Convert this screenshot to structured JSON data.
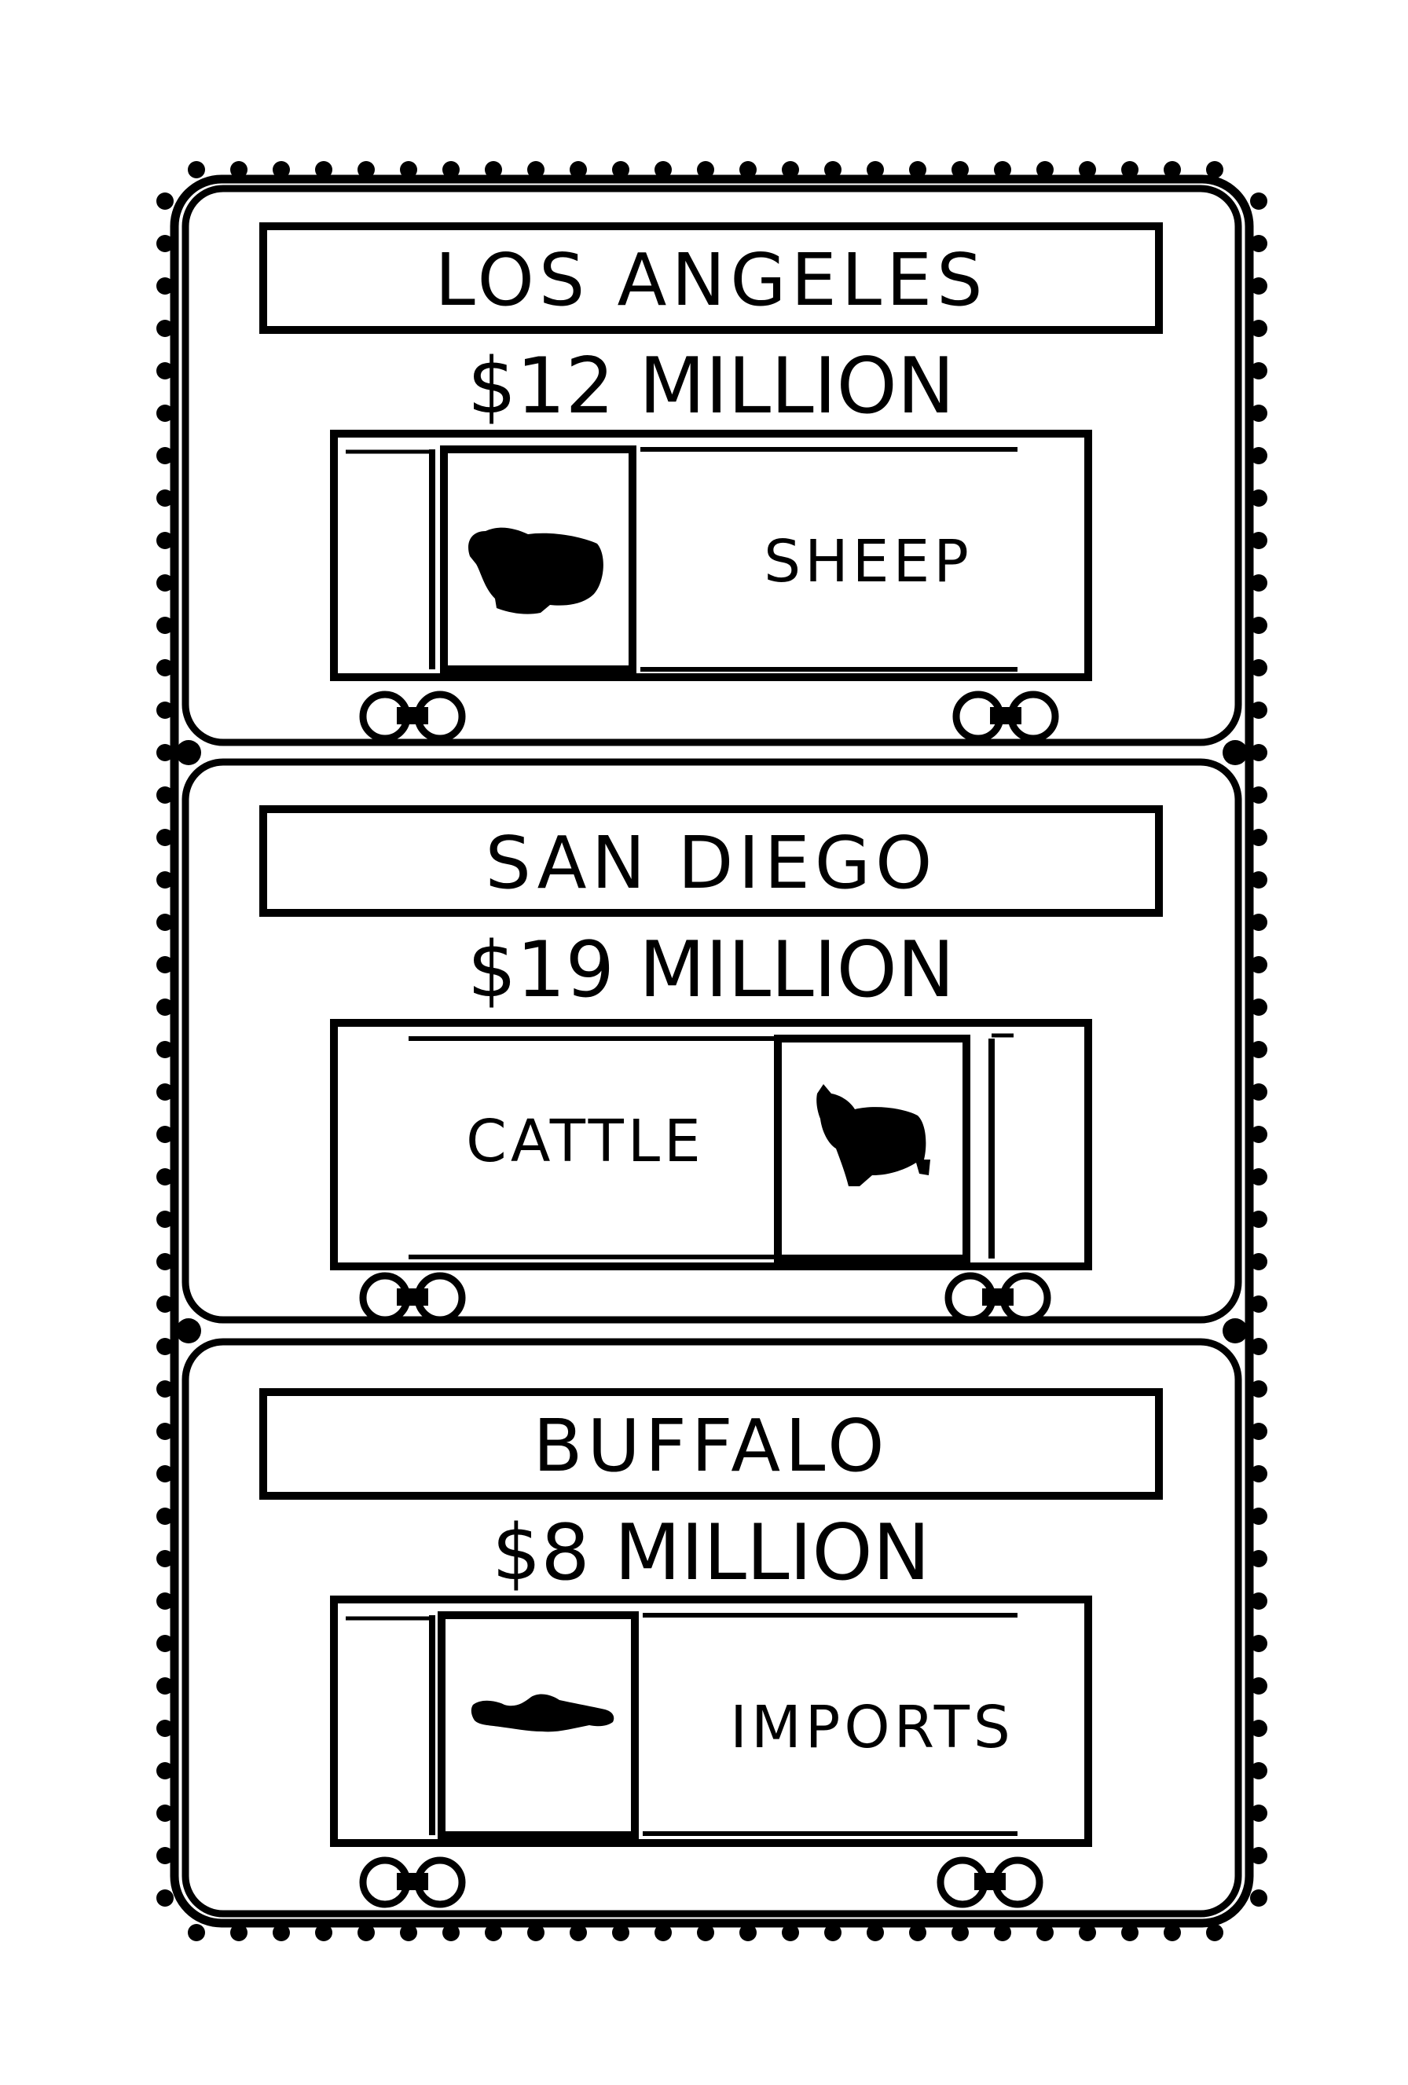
{
  "colors": {
    "ink": "#000000",
    "paper": "#ffffff"
  },
  "panels": [
    {
      "city": "LOS ANGELES",
      "value": "$12 MILLION",
      "cargo": "SHEEP",
      "icon": "sheep-icon"
    },
    {
      "city": "SAN DIEGO",
      "value": "$19 MILLION",
      "cargo": "CATTLE",
      "icon": "cow-icon"
    },
    {
      "city": "BUFFALO",
      "value": "$8 MILLION",
      "cargo": "IMPORTS",
      "icon": "fish-icon"
    }
  ]
}
